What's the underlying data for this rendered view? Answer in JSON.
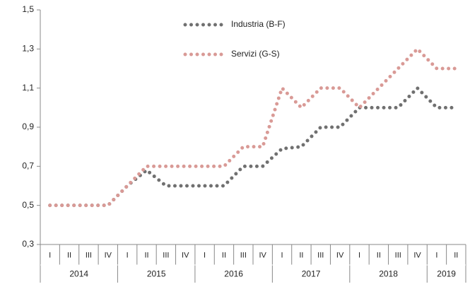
{
  "chart_data": {
    "type": "line",
    "categories": [
      "I",
      "II",
      "III",
      "IV",
      "I",
      "II",
      "III",
      "IV",
      "I",
      "II",
      "III",
      "IV",
      "I",
      "II",
      "III",
      "IV",
      "I",
      "II",
      "III",
      "IV",
      "I",
      "II"
    ],
    "year_groups": [
      "2014",
      "2015",
      "2016",
      "2017",
      "2018",
      "2019"
    ],
    "series": [
      {
        "name": "Industria (B-F)",
        "color": "#707070",
        "values": [
          0.5,
          0.5,
          0.5,
          0.5,
          0.6,
          0.68,
          0.6,
          0.6,
          0.6,
          0.6,
          0.7,
          0.7,
          0.79,
          0.8,
          0.9,
          0.9,
          1.0,
          1.0,
          1.0,
          1.1,
          1.0,
          1.0
        ]
      },
      {
        "name": "Servizi (G-S)",
        "color": "#d99a96",
        "values": [
          0.5,
          0.5,
          0.5,
          0.5,
          0.6,
          0.7,
          0.7,
          0.7,
          0.7,
          0.7,
          0.8,
          0.8,
          1.1,
          1.0,
          1.1,
          1.1,
          1.0,
          1.1,
          1.2,
          1.3,
          1.2,
          1.2
        ]
      }
    ],
    "ylim": [
      0.3,
      1.5
    ],
    "yticks": [
      {
        "value": 0.3,
        "label": "0,3"
      },
      {
        "value": 0.5,
        "label": "0,5"
      },
      {
        "value": 0.7,
        "label": "0,7"
      },
      {
        "value": 0.9,
        "label": "0,9"
      },
      {
        "value": 1.1,
        "label": "1,1"
      },
      {
        "value": 1.3,
        "label": "1,3"
      },
      {
        "value": 1.5,
        "label": "1,5"
      }
    ],
    "legend": "top-center"
  }
}
